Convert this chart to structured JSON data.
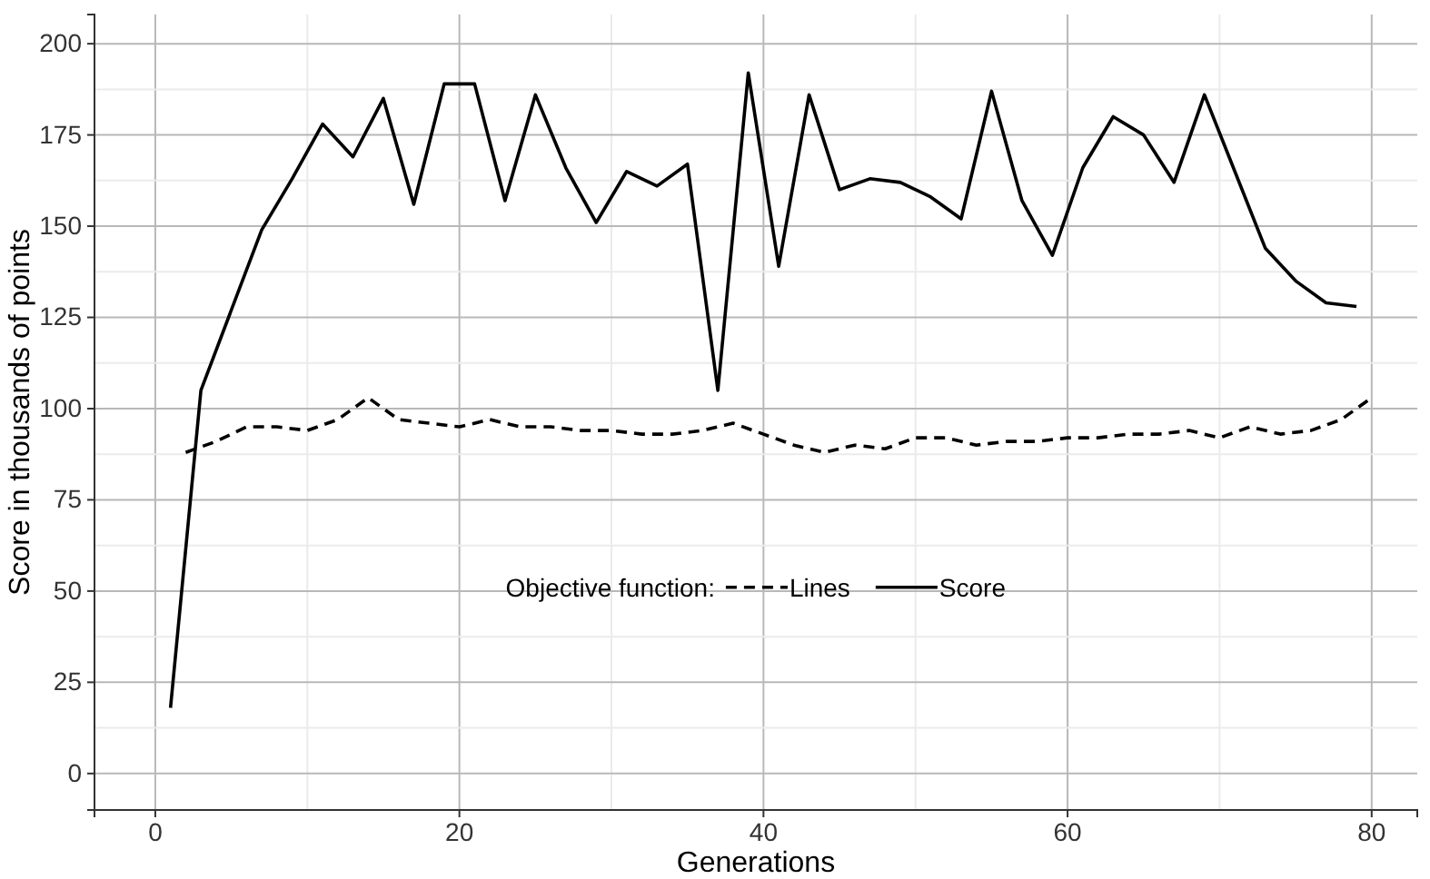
{
  "chart_data": {
    "type": "line",
    "xlabel": "Generations",
    "ylabel": "Score in thousands of points",
    "legend_title": "Objective function:",
    "xlim": [
      -4,
      83
    ],
    "xticks": [
      0,
      20,
      40,
      60,
      80
    ],
    "ylim": [
      -10,
      208
    ],
    "yticks": [
      0,
      25,
      50,
      75,
      100,
      125,
      150,
      175,
      200
    ],
    "grid": true,
    "legend": "center",
    "series": [
      {
        "name": "Lines",
        "color": "#000000",
        "line_style": "dashed",
        "x": [
          2,
          4,
          6,
          8,
          10,
          12,
          14,
          16,
          18,
          20,
          22,
          24,
          26,
          28,
          30,
          32,
          34,
          36,
          38,
          40,
          42,
          44,
          46,
          48,
          50,
          52,
          54,
          56,
          58,
          60,
          62,
          64,
          66,
          68,
          70,
          72,
          74,
          76,
          78,
          80
        ],
        "values": [
          88,
          91,
          95,
          95,
          94,
          97,
          103,
          97,
          96,
          95,
          97,
          95,
          95,
          94,
          94,
          93,
          93,
          94,
          96,
          93,
          90,
          88,
          90,
          89,
          92,
          92,
          90,
          91,
          91,
          92,
          92,
          93,
          93,
          94,
          92,
          95,
          93,
          94,
          97,
          103
        ]
      },
      {
        "name": "Score",
        "color": "#000000",
        "line_style": "solid",
        "x": [
          1,
          3,
          5,
          7,
          9,
          11,
          13,
          15,
          17,
          19,
          21,
          23,
          25,
          27,
          29,
          31,
          33,
          35,
          37,
          39,
          41,
          43,
          45,
          47,
          49,
          51,
          53,
          55,
          57,
          59,
          61,
          63,
          65,
          67,
          69,
          71,
          73,
          75,
          77,
          79
        ],
        "values": [
          18,
          105,
          127,
          149,
          163,
          178,
          169,
          185,
          156,
          189,
          189,
          157,
          186,
          166,
          151,
          165,
          161,
          167,
          105,
          192,
          139,
          186,
          160,
          163,
          162,
          158,
          152,
          187,
          157,
          142,
          166,
          180,
          175,
          162,
          186,
          165,
          144,
          135,
          129,
          128
        ]
      }
    ]
  }
}
